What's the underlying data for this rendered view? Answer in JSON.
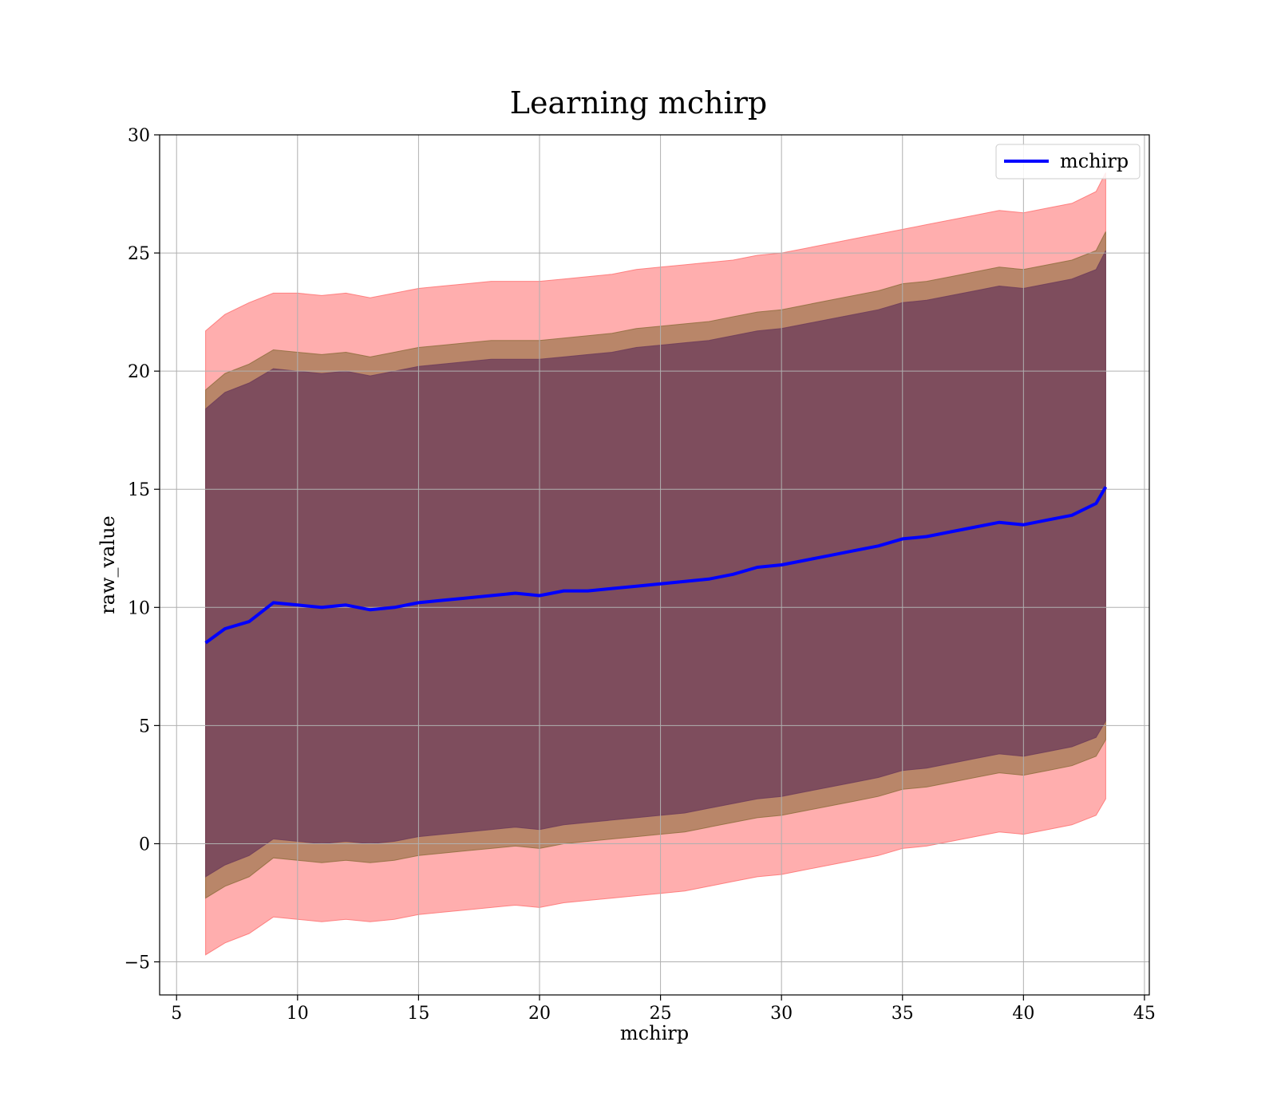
{
  "chart_data": {
    "type": "line",
    "title": "Learning mchirp",
    "xlabel": "mchirp",
    "ylabel": "raw_value",
    "xlim": [
      4.3,
      45.2
    ],
    "ylim": [
      -6.4,
      30
    ],
    "xticks": [
      5,
      10,
      15,
      20,
      25,
      30,
      35,
      40,
      45
    ],
    "xtick_labels": [
      "5",
      "10",
      "15",
      "20",
      "25",
      "30",
      "35",
      "40",
      "45"
    ],
    "yticks": [
      -5,
      0,
      5,
      10,
      15,
      20,
      25,
      30
    ],
    "ytick_labels": [
      "−5",
      "0",
      "5",
      "10",
      "15",
      "20",
      "25",
      "30"
    ],
    "grid": true,
    "legend": {
      "position": "top-right",
      "entries": [
        "mchirp"
      ]
    },
    "colors": {
      "line": "#0000ff",
      "band_outer": "#ff6b6b",
      "band_middle": "#8b6b3a",
      "band_inner": "#6b3a5a",
      "grid": "#b0b0b0"
    },
    "x": [
      6.2,
      7,
      8,
      9,
      10,
      11,
      12,
      13,
      14,
      15,
      16,
      17,
      18,
      19,
      20,
      21,
      22,
      23,
      24,
      25,
      26,
      27,
      28,
      29,
      30,
      31,
      32,
      33,
      34,
      35,
      36,
      37,
      38,
      39,
      40,
      41,
      42,
      43,
      43.4
    ],
    "series": [
      {
        "name": "mchirp",
        "values": [
          8.5,
          9.1,
          9.4,
          10.2,
          10.1,
          10.0,
          10.1,
          9.9,
          10.0,
          10.2,
          10.3,
          10.4,
          10.5,
          10.6,
          10.5,
          10.7,
          10.7,
          10.8,
          10.9,
          11.0,
          11.1,
          11.2,
          11.4,
          11.7,
          11.8,
          12.0,
          12.2,
          12.4,
          12.6,
          12.9,
          13.0,
          13.2,
          13.4,
          13.6,
          13.5,
          13.7,
          13.9,
          14.4,
          15.1
        ]
      },
      {
        "band": "outer",
        "upper": [
          21.7,
          22.4,
          22.9,
          23.3,
          23.3,
          23.2,
          23.3,
          23.1,
          23.3,
          23.5,
          23.6,
          23.7,
          23.8,
          23.8,
          23.8,
          23.9,
          24.0,
          24.1,
          24.3,
          24.4,
          24.5,
          24.6,
          24.7,
          24.9,
          25.0,
          25.2,
          25.4,
          25.6,
          25.8,
          26.0,
          26.2,
          26.4,
          26.6,
          26.8,
          26.7,
          26.9,
          27.1,
          27.6,
          28.4
        ],
        "lower": [
          -4.7,
          -4.2,
          -3.8,
          -3.1,
          -3.2,
          -3.3,
          -3.2,
          -3.3,
          -3.2,
          -3.0,
          -2.9,
          -2.8,
          -2.7,
          -2.6,
          -2.7,
          -2.5,
          -2.4,
          -2.3,
          -2.2,
          -2.1,
          -2.0,
          -1.8,
          -1.6,
          -1.4,
          -1.3,
          -1.1,
          -0.9,
          -0.7,
          -0.5,
          -0.2,
          -0.1,
          0.1,
          0.3,
          0.5,
          0.4,
          0.6,
          0.8,
          1.2,
          1.9
        ]
      },
      {
        "band": "middle",
        "upper": [
          19.2,
          19.9,
          20.3,
          20.9,
          20.8,
          20.7,
          20.8,
          20.6,
          20.8,
          21.0,
          21.1,
          21.2,
          21.3,
          21.3,
          21.3,
          21.4,
          21.5,
          21.6,
          21.8,
          21.9,
          22.0,
          22.1,
          22.3,
          22.5,
          22.6,
          22.8,
          23.0,
          23.2,
          23.4,
          23.7,
          23.8,
          24.0,
          24.2,
          24.4,
          24.3,
          24.5,
          24.7,
          25.1,
          25.9
        ],
        "lower": [
          -2.3,
          -1.8,
          -1.4,
          -0.6,
          -0.7,
          -0.8,
          -0.7,
          -0.8,
          -0.7,
          -0.5,
          -0.4,
          -0.3,
          -0.2,
          -0.1,
          -0.2,
          0.0,
          0.1,
          0.2,
          0.3,
          0.4,
          0.5,
          0.7,
          0.9,
          1.1,
          1.2,
          1.4,
          1.6,
          1.8,
          2.0,
          2.3,
          2.4,
          2.6,
          2.8,
          3.0,
          2.9,
          3.1,
          3.3,
          3.7,
          4.4
        ]
      },
      {
        "band": "inner",
        "upper": [
          18.4,
          19.1,
          19.5,
          20.1,
          20.0,
          19.9,
          20.0,
          19.8,
          20.0,
          20.2,
          20.3,
          20.4,
          20.5,
          20.5,
          20.5,
          20.6,
          20.7,
          20.8,
          21.0,
          21.1,
          21.2,
          21.3,
          21.5,
          21.7,
          21.8,
          22.0,
          22.2,
          22.4,
          22.6,
          22.9,
          23.0,
          23.2,
          23.4,
          23.6,
          23.5,
          23.7,
          23.9,
          24.3,
          25.1
        ],
        "lower": [
          -1.4,
          -0.9,
          -0.5,
          0.2,
          0.1,
          0.0,
          0.1,
          0.0,
          0.1,
          0.3,
          0.4,
          0.5,
          0.6,
          0.7,
          0.6,
          0.8,
          0.9,
          1.0,
          1.1,
          1.2,
          1.3,
          1.5,
          1.7,
          1.9,
          2.0,
          2.2,
          2.4,
          2.6,
          2.8,
          3.1,
          3.2,
          3.4,
          3.6,
          3.8,
          3.7,
          3.9,
          4.1,
          4.5,
          5.2
        ]
      }
    ]
  }
}
